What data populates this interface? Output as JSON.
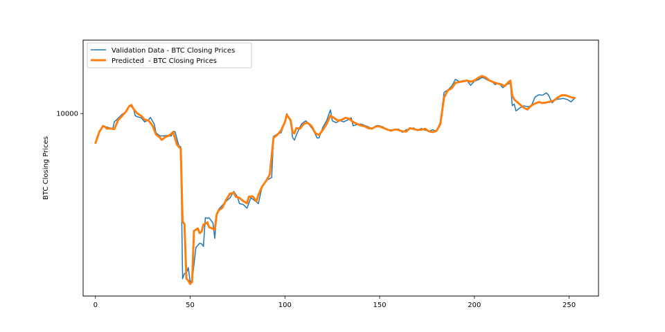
{
  "chart_data": {
    "type": "line",
    "title": "",
    "xlabel": "",
    "ylabel": "BTC Closing Prices",
    "xlim": [
      -6.5,
      265.5
    ],
    "ylim": [
      4150,
      14250
    ],
    "yscale": "log",
    "xticks": [
      0,
      50,
      100,
      150,
      200,
      250
    ],
    "xtick_labels": [
      "0",
      "50",
      "100",
      "150",
      "200",
      "250"
    ],
    "yticks": [
      10000
    ],
    "ytick_labels": [
      "10000"
    ],
    "legend_position": "upper-left",
    "grid": false,
    "series": [
      {
        "name": "Validation Data - BTC Closing Prices",
        "color": "#1f77b4",
        "line_width": 1.5,
        "points": [
          [
            0,
            8720
          ],
          [
            2,
            9170
          ],
          [
            4,
            9390
          ],
          [
            6,
            9370
          ],
          [
            8,
            9320
          ],
          [
            9,
            9260
          ],
          [
            10,
            9610
          ],
          [
            12,
            9780
          ],
          [
            14,
            9960
          ],
          [
            16,
            10080
          ],
          [
            18,
            10380
          ],
          [
            20,
            10280
          ],
          [
            21,
            9900
          ],
          [
            22,
            9850
          ],
          [
            24,
            9810
          ],
          [
            26,
            9610
          ],
          [
            28,
            9700
          ],
          [
            29,
            9820
          ],
          [
            31,
            9510
          ],
          [
            32,
            9110
          ],
          [
            34,
            8980
          ],
          [
            36,
            8980
          ],
          [
            38,
            9000
          ],
          [
            40,
            8970
          ],
          [
            41,
            9180
          ],
          [
            42,
            9160
          ],
          [
            44,
            8570
          ],
          [
            45,
            8520
          ],
          [
            46,
            4510
          ],
          [
            47,
            4630
          ],
          [
            48,
            4630
          ],
          [
            49,
            4760
          ],
          [
            50,
            4450
          ],
          [
            51,
            4460
          ],
          [
            53,
            5240
          ],
          [
            54,
            5300
          ],
          [
            55,
            5350
          ],
          [
            56,
            5340
          ],
          [
            57,
            5270
          ],
          [
            58,
            6050
          ],
          [
            59,
            6040
          ],
          [
            60,
            6050
          ],
          [
            62,
            5900
          ],
          [
            63,
            5480
          ],
          [
            64,
            6150
          ],
          [
            65,
            6300
          ],
          [
            67,
            6430
          ],
          [
            69,
            6550
          ],
          [
            71,
            6660
          ],
          [
            73,
            6870
          ],
          [
            74,
            6780
          ],
          [
            75,
            6680
          ],
          [
            76,
            6480
          ],
          [
            78,
            6450
          ],
          [
            80,
            6340
          ],
          [
            82,
            6660
          ],
          [
            83,
            6620
          ],
          [
            85,
            6530
          ],
          [
            86,
            6480
          ],
          [
            88,
            7050
          ],
          [
            90,
            7240
          ],
          [
            93,
            7350
          ],
          [
            94,
            8960
          ],
          [
            96,
            9060
          ],
          [
            98,
            9120
          ],
          [
            100,
            9590
          ],
          [
            101,
            10000
          ],
          [
            103,
            9620
          ],
          [
            104,
            8920
          ],
          [
            105,
            8800
          ],
          [
            106,
            9010
          ],
          [
            108,
            9390
          ],
          [
            109,
            9530
          ],
          [
            111,
            9660
          ],
          [
            112,
            9570
          ],
          [
            114,
            9340
          ],
          [
            115,
            9240
          ],
          [
            117,
            8890
          ],
          [
            118,
            8890
          ],
          [
            120,
            9360
          ],
          [
            122,
            9660
          ],
          [
            124,
            10180
          ],
          [
            125,
            9660
          ],
          [
            127,
            9570
          ],
          [
            129,
            9670
          ],
          [
            131,
            9610
          ],
          [
            133,
            9690
          ],
          [
            135,
            9800
          ],
          [
            136,
            9430
          ],
          [
            138,
            9480
          ],
          [
            140,
            9510
          ],
          [
            142,
            9450
          ],
          [
            144,
            9380
          ],
          [
            146,
            9280
          ],
          [
            148,
            9430
          ],
          [
            150,
            9430
          ],
          [
            152,
            9370
          ],
          [
            154,
            9250
          ],
          [
            156,
            9240
          ],
          [
            158,
            9270
          ],
          [
            160,
            9280
          ],
          [
            162,
            9130
          ],
          [
            164,
            9250
          ],
          [
            166,
            9290
          ],
          [
            168,
            9330
          ],
          [
            170,
            9210
          ],
          [
            172,
            9310
          ],
          [
            174,
            9230
          ],
          [
            176,
            9190
          ],
          [
            178,
            9250
          ],
          [
            180,
            9180
          ],
          [
            182,
            9600
          ],
          [
            184,
            11080
          ],
          [
            186,
            11210
          ],
          [
            188,
            11410
          ],
          [
            190,
            11790
          ],
          [
            192,
            11670
          ],
          [
            194,
            11720
          ],
          [
            196,
            11740
          ],
          [
            198,
            11460
          ],
          [
            200,
            11690
          ],
          [
            202,
            11770
          ],
          [
            204,
            11900
          ],
          [
            205,
            11880
          ],
          [
            207,
            11750
          ],
          [
            209,
            11680
          ],
          [
            211,
            11500
          ],
          [
            213,
            11580
          ],
          [
            215,
            11330
          ],
          [
            217,
            11510
          ],
          [
            219,
            11560
          ],
          [
            220,
            10390
          ],
          [
            221,
            10470
          ],
          [
            222,
            10130
          ],
          [
            224,
            10280
          ],
          [
            226,
            10380
          ],
          [
            228,
            10340
          ],
          [
            230,
            10370
          ],
          [
            232,
            10830
          ],
          [
            234,
            10950
          ],
          [
            236,
            10930
          ],
          [
            238,
            11050
          ],
          [
            239,
            10950
          ],
          [
            241,
            10540
          ],
          [
            243,
            10700
          ],
          [
            245,
            10730
          ],
          [
            247,
            10760
          ],
          [
            249,
            10700
          ],
          [
            251,
            10580
          ],
          [
            253,
            10780
          ]
        ]
      },
      {
        "name": "Predicted  - BTC Closing Prices",
        "color": "#ff7f0e",
        "line_width": 3,
        "points": [
          [
            0,
            8680
          ],
          [
            2,
            9150
          ],
          [
            4,
            9420
          ],
          [
            5,
            9380
          ],
          [
            6,
            9300
          ],
          [
            8,
            9310
          ],
          [
            10,
            9280
          ],
          [
            12,
            9700
          ],
          [
            14,
            9880
          ],
          [
            16,
            10080
          ],
          [
            18,
            10380
          ],
          [
            19,
            10420
          ],
          [
            20,
            10240
          ],
          [
            22,
            10010
          ],
          [
            24,
            9910
          ],
          [
            26,
            9710
          ],
          [
            28,
            9670
          ],
          [
            30,
            9460
          ],
          [
            32,
            9040
          ],
          [
            34,
            8910
          ],
          [
            35,
            8810
          ],
          [
            37,
            8940
          ],
          [
            39,
            9000
          ],
          [
            41,
            9150
          ],
          [
            43,
            8610
          ],
          [
            45,
            8440
          ],
          [
            46,
            5950
          ],
          [
            47,
            5870
          ],
          [
            48,
            4510
          ],
          [
            49,
            4470
          ],
          [
            50,
            4400
          ],
          [
            51,
            4440
          ],
          [
            52,
            5680
          ],
          [
            54,
            5750
          ],
          [
            55,
            5620
          ],
          [
            56,
            5660
          ],
          [
            57,
            5860
          ],
          [
            58,
            5880
          ],
          [
            59,
            5920
          ],
          [
            60,
            5780
          ],
          [
            62,
            5740
          ],
          [
            63,
            5710
          ],
          [
            64,
            6150
          ],
          [
            65,
            6270
          ],
          [
            67,
            6350
          ],
          [
            69,
            6600
          ],
          [
            71,
            6800
          ],
          [
            73,
            6830
          ],
          [
            74,
            6700
          ],
          [
            76,
            6660
          ],
          [
            78,
            6560
          ],
          [
            80,
            6490
          ],
          [
            81,
            6700
          ],
          [
            83,
            6710
          ],
          [
            85,
            6550
          ],
          [
            86,
            6760
          ],
          [
            88,
            7040
          ],
          [
            90,
            7220
          ],
          [
            92,
            7450
          ],
          [
            94,
            8900
          ],
          [
            96,
            9030
          ],
          [
            98,
            9220
          ],
          [
            100,
            9610
          ],
          [
            101,
            9940
          ],
          [
            103,
            9690
          ],
          [
            104,
            9150
          ],
          [
            105,
            9090
          ],
          [
            106,
            9320
          ],
          [
            108,
            9300
          ],
          [
            110,
            9530
          ],
          [
            112,
            9560
          ],
          [
            114,
            9420
          ],
          [
            116,
            9100
          ],
          [
            118,
            9020
          ],
          [
            120,
            9240
          ],
          [
            122,
            9510
          ],
          [
            124,
            9900
          ],
          [
            126,
            9790
          ],
          [
            128,
            9660
          ],
          [
            130,
            9710
          ],
          [
            132,
            9800
          ],
          [
            134,
            9750
          ],
          [
            136,
            9600
          ],
          [
            138,
            9520
          ],
          [
            140,
            9450
          ],
          [
            142,
            9410
          ],
          [
            144,
            9320
          ],
          [
            146,
            9300
          ],
          [
            148,
            9400
          ],
          [
            150,
            9400
          ],
          [
            152,
            9330
          ],
          [
            154,
            9260
          ],
          [
            156,
            9210
          ],
          [
            158,
            9260
          ],
          [
            160,
            9240
          ],
          [
            162,
            9180
          ],
          [
            164,
            9170
          ],
          [
            166,
            9320
          ],
          [
            168,
            9280
          ],
          [
            170,
            9240
          ],
          [
            172,
            9250
          ],
          [
            174,
            9290
          ],
          [
            176,
            9180
          ],
          [
            178,
            9150
          ],
          [
            180,
            9200
          ],
          [
            182,
            9500
          ],
          [
            184,
            10800
          ],
          [
            186,
            11190
          ],
          [
            188,
            11290
          ],
          [
            190,
            11600
          ],
          [
            192,
            11640
          ],
          [
            194,
            11680
          ],
          [
            196,
            11730
          ],
          [
            198,
            11660
          ],
          [
            200,
            11730
          ],
          [
            202,
            11880
          ],
          [
            204,
            11990
          ],
          [
            206,
            11900
          ],
          [
            208,
            11730
          ],
          [
            210,
            11640
          ],
          [
            212,
            11560
          ],
          [
            214,
            11520
          ],
          [
            216,
            11420
          ],
          [
            218,
            11640
          ],
          [
            219,
            11720
          ],
          [
            220,
            10910
          ],
          [
            221,
            10710
          ],
          [
            222,
            10620
          ],
          [
            224,
            10450
          ],
          [
            226,
            10290
          ],
          [
            228,
            10200
          ],
          [
            230,
            10400
          ],
          [
            232,
            10500
          ],
          [
            234,
            10570
          ],
          [
            236,
            10520
          ],
          [
            238,
            10550
          ],
          [
            240,
            10590
          ],
          [
            242,
            10650
          ],
          [
            244,
            10810
          ],
          [
            246,
            10920
          ],
          [
            248,
            10930
          ],
          [
            250,
            10860
          ],
          [
            251,
            10820
          ],
          [
            253,
            10780
          ]
        ]
      }
    ]
  }
}
